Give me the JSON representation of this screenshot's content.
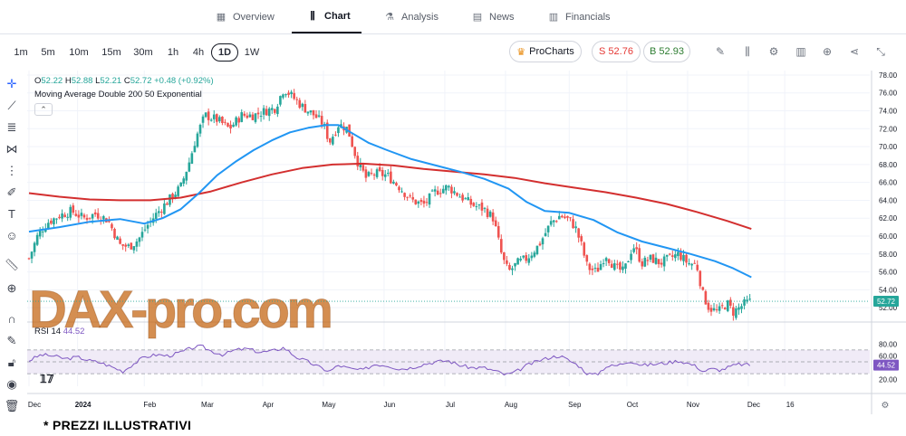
{
  "nav": {
    "tabs": [
      {
        "label": "Overview",
        "icon": "overview-grid-icon",
        "active": false
      },
      {
        "label": "Chart",
        "icon": "candlestick-icon",
        "active": true
      },
      {
        "label": "Analysis",
        "icon": "flask-icon",
        "active": false
      },
      {
        "label": "News",
        "icon": "news-icon",
        "active": false
      },
      {
        "label": "Financials",
        "icon": "bar-chart-icon",
        "active": false
      }
    ]
  },
  "toolbar": {
    "timeframes": [
      "1m",
      "5m",
      "10m",
      "15m",
      "30m",
      "1h",
      "4h",
      "1D",
      "1W"
    ],
    "active_timeframe": "1D",
    "procharts_label": "ProCharts",
    "sell_label": "S 52.76",
    "buy_label": "B 52.93",
    "icons": [
      "pencil-icon",
      "candle-type-icon",
      "settings-icon",
      "indicators-icon",
      "add-icon",
      "share-icon",
      "collapse-icon"
    ]
  },
  "leftbar": {
    "icons": [
      "crosshair-icon",
      "trendline-icon",
      "horizontal-lines-icon",
      "pattern-icon",
      "fib-icon",
      "brush-icon",
      "text-icon",
      "emoji-icon",
      "ruler-icon",
      "zoom-icon",
      "magnet-icon",
      "lock-draw-icon",
      "lock-icon",
      "eye-icon",
      "trash-icon"
    ]
  },
  "legend": {
    "ohlc": {
      "o_label": "O",
      "o": "52.22",
      "h_label": "H",
      "h": "52.88",
      "l_label": "L",
      "l": "52.21",
      "c_label": "C",
      "c": "52.72",
      "change": "+0.48 (+0.92%)"
    },
    "indicator": "Moving Average Double 200 50 Exponential",
    "rsi_label": "RSI 14",
    "rsi_value": "44.52"
  },
  "colors": {
    "up": "#26a69a",
    "down": "#ef5350",
    "ma_fast": "#2196f3",
    "ma_slow": "#d32f2f",
    "rsi_line": "#7e57c2",
    "rsi_band": "#ede7f6",
    "watermark": "#c4620e"
  },
  "watermark": "DAX-pro.com",
  "footer_note": "* PREZZI ILLUSTRATIVI",
  "chart_data": {
    "type": "candlestick",
    "price_axis": [
      "78.00",
      "76.00",
      "74.00",
      "72.00",
      "70.00",
      "68.00",
      "66.00",
      "64.00",
      "62.00",
      "60.00",
      "58.00",
      "56.00",
      "54.00",
      "52.00"
    ],
    "price_ylim": [
      50.5,
      78.5
    ],
    "current_price": "52.72",
    "rsi_axis": [
      "80.00",
      "60.00",
      "40.00",
      "20.00"
    ],
    "rsi_ylim": [
      15,
      85
    ],
    "rsi_current": "44.52",
    "time_labels": [
      {
        "label": "Dec",
        "bold": false,
        "x": 0.0
      },
      {
        "label": "2024",
        "bold": true,
        "x": 0.8
      },
      {
        "label": "Feb",
        "bold": false,
        "x": 1.9
      },
      {
        "label": "Mar",
        "bold": false,
        "x": 2.85
      },
      {
        "label": "Apr",
        "bold": false,
        "x": 3.85
      },
      {
        "label": "May",
        "bold": false,
        "x": 4.85
      },
      {
        "label": "Jun",
        "bold": false,
        "x": 5.85
      },
      {
        "label": "Jul",
        "bold": false,
        "x": 6.85
      },
      {
        "label": "Aug",
        "bold": false,
        "x": 7.85
      },
      {
        "label": "Sep",
        "bold": false,
        "x": 8.9
      },
      {
        "label": "Oct",
        "bold": false,
        "x": 9.85
      },
      {
        "label": "Nov",
        "bold": false,
        "x": 10.85
      },
      {
        "label": "Dec",
        "bold": false,
        "x": 11.85
      },
      {
        "label": "16",
        "bold": false,
        "x": 12.45
      }
    ],
    "close_path": [
      [
        0.0,
        57.5
      ],
      [
        0.15,
        60.2
      ],
      [
        0.3,
        61.5
      ],
      [
        0.5,
        62.3
      ],
      [
        0.7,
        62.8
      ],
      [
        0.9,
        62.0
      ],
      [
        1.1,
        62.5
      ],
      [
        1.3,
        61.8
      ],
      [
        1.5,
        59.0
      ],
      [
        1.65,
        58.8
      ],
      [
        1.8,
        59.6
      ],
      [
        1.95,
        61.2
      ],
      [
        2.1,
        62.5
      ],
      [
        2.3,
        64.0
      ],
      [
        2.5,
        65.5
      ],
      [
        2.65,
        68.5
      ],
      [
        2.75,
        71.0
      ],
      [
        2.9,
        73.5
      ],
      [
        3.1,
        73.0
      ],
      [
        3.3,
        72.0
      ],
      [
        3.5,
        73.5
      ],
      [
        3.7,
        73.5
      ],
      [
        3.9,
        74.0
      ],
      [
        4.05,
        74.3
      ],
      [
        4.2,
        76.5
      ],
      [
        4.35,
        75.5
      ],
      [
        4.5,
        74.5
      ],
      [
        4.7,
        73.5
      ],
      [
        4.85,
        72.5
      ],
      [
        4.95,
        70.5
      ],
      [
        5.1,
        72.5
      ],
      [
        5.25,
        72.0
      ],
      [
        5.4,
        68.5
      ],
      [
        5.55,
        66.5
      ],
      [
        5.7,
        67.0
      ],
      [
        5.9,
        66.8
      ],
      [
        6.1,
        65.5
      ],
      [
        6.3,
        64.0
      ],
      [
        6.5,
        63.5
      ],
      [
        6.7,
        65.0
      ],
      [
        6.9,
        65.5
      ],
      [
        7.1,
        64.5
      ],
      [
        7.3,
        63.5
      ],
      [
        7.5,
        63.0
      ],
      [
        7.65,
        62.0
      ],
      [
        7.8,
        57.5
      ],
      [
        7.9,
        56.0
      ],
      [
        8.05,
        57.0
      ],
      [
        8.2,
        57.5
      ],
      [
        8.4,
        59.0
      ],
      [
        8.6,
        61.5
      ],
      [
        8.75,
        62.3
      ],
      [
        8.9,
        61.8
      ],
      [
        9.0,
        61.0
      ],
      [
        9.1,
        59.0
      ],
      [
        9.2,
        56.5
      ],
      [
        9.35,
        56.0
      ],
      [
        9.5,
        58.0
      ],
      [
        9.65,
        56.5
      ],
      [
        9.8,
        56.0
      ],
      [
        9.95,
        59.0
      ],
      [
        10.1,
        57.0
      ],
      [
        10.25,
        57.5
      ],
      [
        10.4,
        57.0
      ],
      [
        10.55,
        57.5
      ],
      [
        10.7,
        58.0
      ],
      [
        10.85,
        57.0
      ],
      [
        11.0,
        56.8
      ],
      [
        11.1,
        53.5
      ],
      [
        11.2,
        52.0
      ],
      [
        11.35,
        51.5
      ],
      [
        11.5,
        52.5
      ],
      [
        11.6,
        51.5
      ],
      [
        11.7,
        52.0
      ],
      [
        11.8,
        52.5
      ],
      [
        11.9,
        52.72
      ]
    ],
    "ma_fast_path": [
      [
        0.0,
        60.5
      ],
      [
        0.5,
        61.0
      ],
      [
        1.0,
        61.6
      ],
      [
        1.5,
        61.9
      ],
      [
        1.9,
        61.4
      ],
      [
        2.2,
        62.0
      ],
      [
        2.5,
        63.0
      ],
      [
        2.8,
        64.8
      ],
      [
        3.1,
        66.8
      ],
      [
        3.4,
        68.3
      ],
      [
        3.7,
        69.6
      ],
      [
        4.0,
        70.7
      ],
      [
        4.3,
        71.6
      ],
      [
        4.6,
        72.1
      ],
      [
        4.9,
        72.4
      ],
      [
        5.1,
        72.4
      ],
      [
        5.3,
        71.6
      ],
      [
        5.6,
        70.4
      ],
      [
        5.9,
        69.6
      ],
      [
        6.3,
        68.6
      ],
      [
        6.7,
        67.9
      ],
      [
        7.1,
        67.2
      ],
      [
        7.5,
        66.4
      ],
      [
        7.9,
        65.3
      ],
      [
        8.2,
        63.8
      ],
      [
        8.5,
        62.8
      ],
      [
        8.9,
        62.6
      ],
      [
        9.3,
        61.8
      ],
      [
        9.7,
        60.4
      ],
      [
        10.1,
        59.4
      ],
      [
        10.5,
        58.7
      ],
      [
        10.9,
        58.0
      ],
      [
        11.3,
        57.2
      ],
      [
        11.6,
        56.4
      ],
      [
        11.9,
        55.4
      ]
    ],
    "ma_slow_path": [
      [
        0.0,
        64.8
      ],
      [
        0.5,
        64.4
      ],
      [
        1.0,
        64.1
      ],
      [
        1.5,
        64.0
      ],
      [
        2.0,
        64.0
      ],
      [
        2.5,
        64.3
      ],
      [
        3.0,
        65.0
      ],
      [
        3.5,
        66.0
      ],
      [
        4.0,
        66.9
      ],
      [
        4.5,
        67.6
      ],
      [
        5.0,
        68.0
      ],
      [
        5.5,
        68.1
      ],
      [
        6.0,
        67.9
      ],
      [
        6.5,
        67.5
      ],
      [
        7.0,
        67.2
      ],
      [
        7.5,
        66.9
      ],
      [
        8.0,
        66.5
      ],
      [
        8.5,
        65.9
      ],
      [
        9.0,
        65.4
      ],
      [
        9.5,
        64.9
      ],
      [
        10.0,
        64.3
      ],
      [
        10.5,
        63.6
      ],
      [
        11.0,
        62.7
      ],
      [
        11.5,
        61.7
      ],
      [
        11.9,
        60.8
      ]
    ],
    "rsi_path": [
      [
        0.0,
        52
      ],
      [
        0.2,
        62
      ],
      [
        0.4,
        60
      ],
      [
        0.6,
        55
      ],
      [
        0.8,
        58
      ],
      [
        1.0,
        52
      ],
      [
        1.2,
        48
      ],
      [
        1.4,
        40
      ],
      [
        1.55,
        34
      ],
      [
        1.7,
        45
      ],
      [
        1.9,
        58
      ],
      [
        2.1,
        62
      ],
      [
        2.3,
        60
      ],
      [
        2.5,
        66
      ],
      [
        2.7,
        74
      ],
      [
        2.85,
        76
      ],
      [
        3.0,
        68
      ],
      [
        3.2,
        62
      ],
      [
        3.4,
        70
      ],
      [
        3.6,
        72
      ],
      [
        3.8,
        66
      ],
      [
        4.0,
        68
      ],
      [
        4.2,
        74
      ],
      [
        4.4,
        58
      ],
      [
        4.6,
        50
      ],
      [
        4.8,
        40
      ],
      [
        4.95,
        34
      ],
      [
        5.1,
        44
      ],
      [
        5.3,
        38
      ],
      [
        5.5,
        36
      ],
      [
        5.7,
        46
      ],
      [
        5.9,
        44
      ],
      [
        6.1,
        38
      ],
      [
        6.3,
        40
      ],
      [
        6.5,
        46
      ],
      [
        6.7,
        50
      ],
      [
        6.9,
        52
      ],
      [
        7.1,
        44
      ],
      [
        7.3,
        40
      ],
      [
        7.5,
        40
      ],
      [
        7.7,
        34
      ],
      [
        7.85,
        28
      ],
      [
        8.0,
        32
      ],
      [
        8.2,
        44
      ],
      [
        8.4,
        52
      ],
      [
        8.6,
        58
      ],
      [
        8.75,
        60
      ],
      [
        8.9,
        52
      ],
      [
        9.05,
        44
      ],
      [
        9.2,
        30
      ],
      [
        9.35,
        28
      ],
      [
        9.5,
        42
      ],
      [
        9.7,
        44
      ],
      [
        9.9,
        52
      ],
      [
        10.1,
        44
      ],
      [
        10.3,
        46
      ],
      [
        10.5,
        48
      ],
      [
        10.7,
        52
      ],
      [
        10.9,
        46
      ],
      [
        11.0,
        42
      ],
      [
        11.1,
        34
      ],
      [
        11.25,
        38
      ],
      [
        11.4,
        36
      ],
      [
        11.55,
        42
      ],
      [
        11.7,
        46
      ],
      [
        11.9,
        44.5
      ]
    ]
  }
}
